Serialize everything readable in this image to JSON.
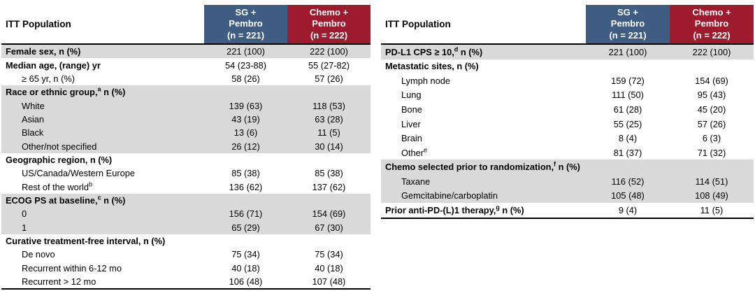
{
  "slide": {
    "row_label_header": "ITT Population",
    "columns": {
      "sg": {
        "lines": [
          "SG +",
          "Pembro",
          "(n = 221)"
        ],
        "color": "#3f5d82"
      },
      "chemo": {
        "lines": [
          "Chemo +",
          "Pembro",
          "(n = 222)"
        ],
        "color": "#9e1b2e"
      }
    },
    "colors": {
      "shaded_row": "#d9d9d9",
      "border": "#000000",
      "header_text": "#ffffff",
      "body_text": "#000000"
    },
    "tables": [
      {
        "name": "demographics",
        "rows": [
          {
            "label": "Female sex, n (%)",
            "bold": true,
            "shaded": true,
            "v1": "221 (100)",
            "v2": "222 (100)"
          },
          {
            "label": "Median age, (range) yr",
            "bold": true,
            "v1": "54 (23-88)",
            "v2": "55 (27-82)"
          },
          {
            "label": "≥ 65 yr, n (%)",
            "indent": true,
            "v1": "58 (26)",
            "v2": "57 (26)"
          },
          {
            "label": "Race or ethnic group,",
            "sup": "a",
            "label2": " n (%)",
            "bold": true,
            "shaded": true
          },
          {
            "label": "White",
            "indent": true,
            "shaded": true,
            "v1": "139 (63)",
            "v2": "118 (53)"
          },
          {
            "label": "Asian",
            "indent": true,
            "shaded": true,
            "v1": "43 (19)",
            "v2": "63 (28)"
          },
          {
            "label": "Black",
            "indent": true,
            "shaded": true,
            "v1": "13 (6)",
            "v2": "11 (5)"
          },
          {
            "label": "Other/not specified",
            "indent": true,
            "shaded": true,
            "v1": "26 (12)",
            "v2": "30 (14)"
          },
          {
            "label": "Geographic region, n (%)",
            "bold": true
          },
          {
            "label": "US/Canada/Western Europe",
            "indent": true,
            "v1": "85 (38)",
            "v2": "85 (38)"
          },
          {
            "label": "Rest of the world",
            "sup": "b",
            "indent": true,
            "v1": "136 (62)",
            "v2": "137 (62)"
          },
          {
            "label": "ECOG PS at baseline,",
            "sup": "c",
            "label2": " n (%)",
            "bold": true,
            "shaded": true
          },
          {
            "label": "0",
            "indent": true,
            "shaded": true,
            "v1": "156 (71)",
            "v2": "154 (69)"
          },
          {
            "label": "1",
            "indent": true,
            "shaded": true,
            "v1": "65 (29)",
            "v2": "67 (30)"
          },
          {
            "label": "Curative treatment-free interval, n (%)",
            "bold": true
          },
          {
            "label": "De novo",
            "indent": true,
            "v1": "75 (34)",
            "v2": "75 (34)"
          },
          {
            "label": "Recurrent within 6-12 mo",
            "indent": true,
            "v1": "40 (18)",
            "v2": "40 (18)"
          },
          {
            "label": "Recurrent > 12 mo",
            "indent": true,
            "v1": "106 (48)",
            "v2": "107 (48)"
          }
        ]
      },
      {
        "name": "disease-characteristics",
        "rows": [
          {
            "label": "PD-L1 CPS ≥ 10,",
            "sup": "d",
            "label2": " n (%)",
            "bold": true,
            "shaded": true,
            "v1": "221 (100)",
            "v2": "222 (100)"
          },
          {
            "label": "Metastatic sites, n (%)",
            "bold": true
          },
          {
            "label": "Lymph node",
            "indent": true,
            "v1": "159 (72)",
            "v2": "154 (69)"
          },
          {
            "label": "Lung",
            "indent": true,
            "v1": "111 (50)",
            "v2": "95 (43)"
          },
          {
            "label": "Bone",
            "indent": true,
            "v1": "61 (28)",
            "v2": "45 (20)"
          },
          {
            "label": "Liver",
            "indent": true,
            "v1": "55 (25)",
            "v2": "57 (26)"
          },
          {
            "label": "Brain",
            "indent": true,
            "v1": "8 (4)",
            "v2": "6 (3)"
          },
          {
            "label": "Other",
            "sup": "e",
            "indent": true,
            "v1": "81 (37)",
            "v2": "71 (32)"
          },
          {
            "label": "Chemo selected prior to randomization,",
            "sup": "f",
            "label2": " n (%)",
            "bold": true,
            "shaded": true
          },
          {
            "label": "Taxane",
            "indent": true,
            "shaded": true,
            "v1": "116 (52)",
            "v2": "114 (51)"
          },
          {
            "label": "Gemcitabine/carboplatin",
            "indent": true,
            "shaded": true,
            "v1": "105 (48)",
            "v2": "108 (49)"
          },
          {
            "label": "Prior anti-PD-(L)1 therapy,",
            "sup": "g",
            "label2": " n (%)",
            "bold": true,
            "v1": "9 (4)",
            "v2": "11 (5)"
          }
        ]
      }
    ]
  }
}
